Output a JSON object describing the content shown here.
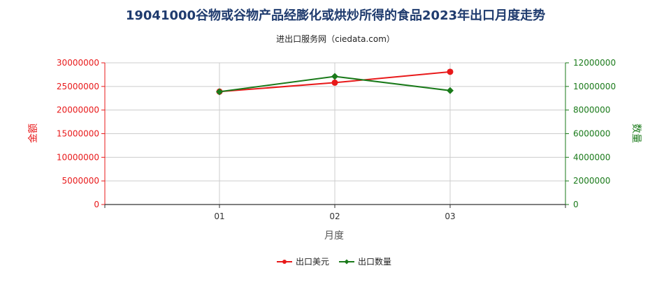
{
  "chart_data": {
    "type": "line",
    "title": "19041000谷物或谷物产品经膨化或烘炒所得的食品2023年出口月度走势",
    "subtitle": "进出口服务网（ciedata.com）",
    "xlabel": "月度",
    "ylabel_left": "金额",
    "ylabel_right": "数量",
    "categories": [
      "01",
      "02",
      "03"
    ],
    "y_left": {
      "min": 0,
      "max": 30000000,
      "ticks": [
        0,
        5000000,
        10000000,
        15000000,
        20000000,
        25000000,
        30000000
      ],
      "tick_labels": [
        "0",
        "5000000",
        "10000000",
        "15000000",
        "20000000",
        "25000000",
        "30000000"
      ]
    },
    "y_right": {
      "min": 0,
      "max": 12000000,
      "ticks": [
        0,
        2000000,
        4000000,
        6000000,
        8000000,
        10000000,
        12000000
      ],
      "tick_labels": [
        "0",
        "2000000",
        "4000000",
        "6000000",
        "8000000",
        "10000000",
        "12000000"
      ]
    },
    "series": [
      {
        "name": "出口美元",
        "axis": "left",
        "color": "#e8191a",
        "marker": "circle",
        "values": [
          23900000,
          25800000,
          28100000
        ]
      },
      {
        "name": "出口数量",
        "axis": "right",
        "color": "#1a7a1a",
        "marker": "diamond",
        "values": [
          9550000,
          10850000,
          9650000
        ]
      }
    ],
    "grid": true,
    "legend_position": "bottom",
    "colors": {
      "title": "#1f3b6e",
      "left_axis": "#e8191a",
      "right_axis": "#1a7a1a",
      "grid": "#cccccc"
    }
  }
}
